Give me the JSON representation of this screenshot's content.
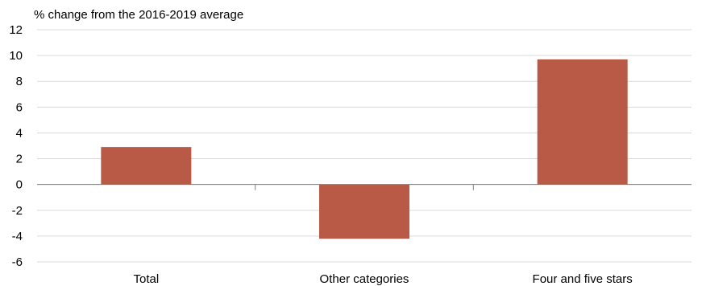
{
  "chart_data": {
    "type": "bar",
    "title": "",
    "xlabel": "",
    "ylabel": "% change from the 2016-2019 average",
    "ylim": [
      -6,
      12
    ],
    "yticks": [
      12,
      10,
      8,
      6,
      4,
      2,
      0,
      -2,
      -4,
      -6
    ],
    "categories": [
      "Total",
      "Other categories",
      "Four and five stars"
    ],
    "values": [
      2.9,
      -4.2,
      9.7
    ],
    "grid": true,
    "legend": "none",
    "colors": {
      "bar": "#b95a46",
      "grid": "#d9d9d9",
      "axis": "#7f7f7f"
    }
  }
}
